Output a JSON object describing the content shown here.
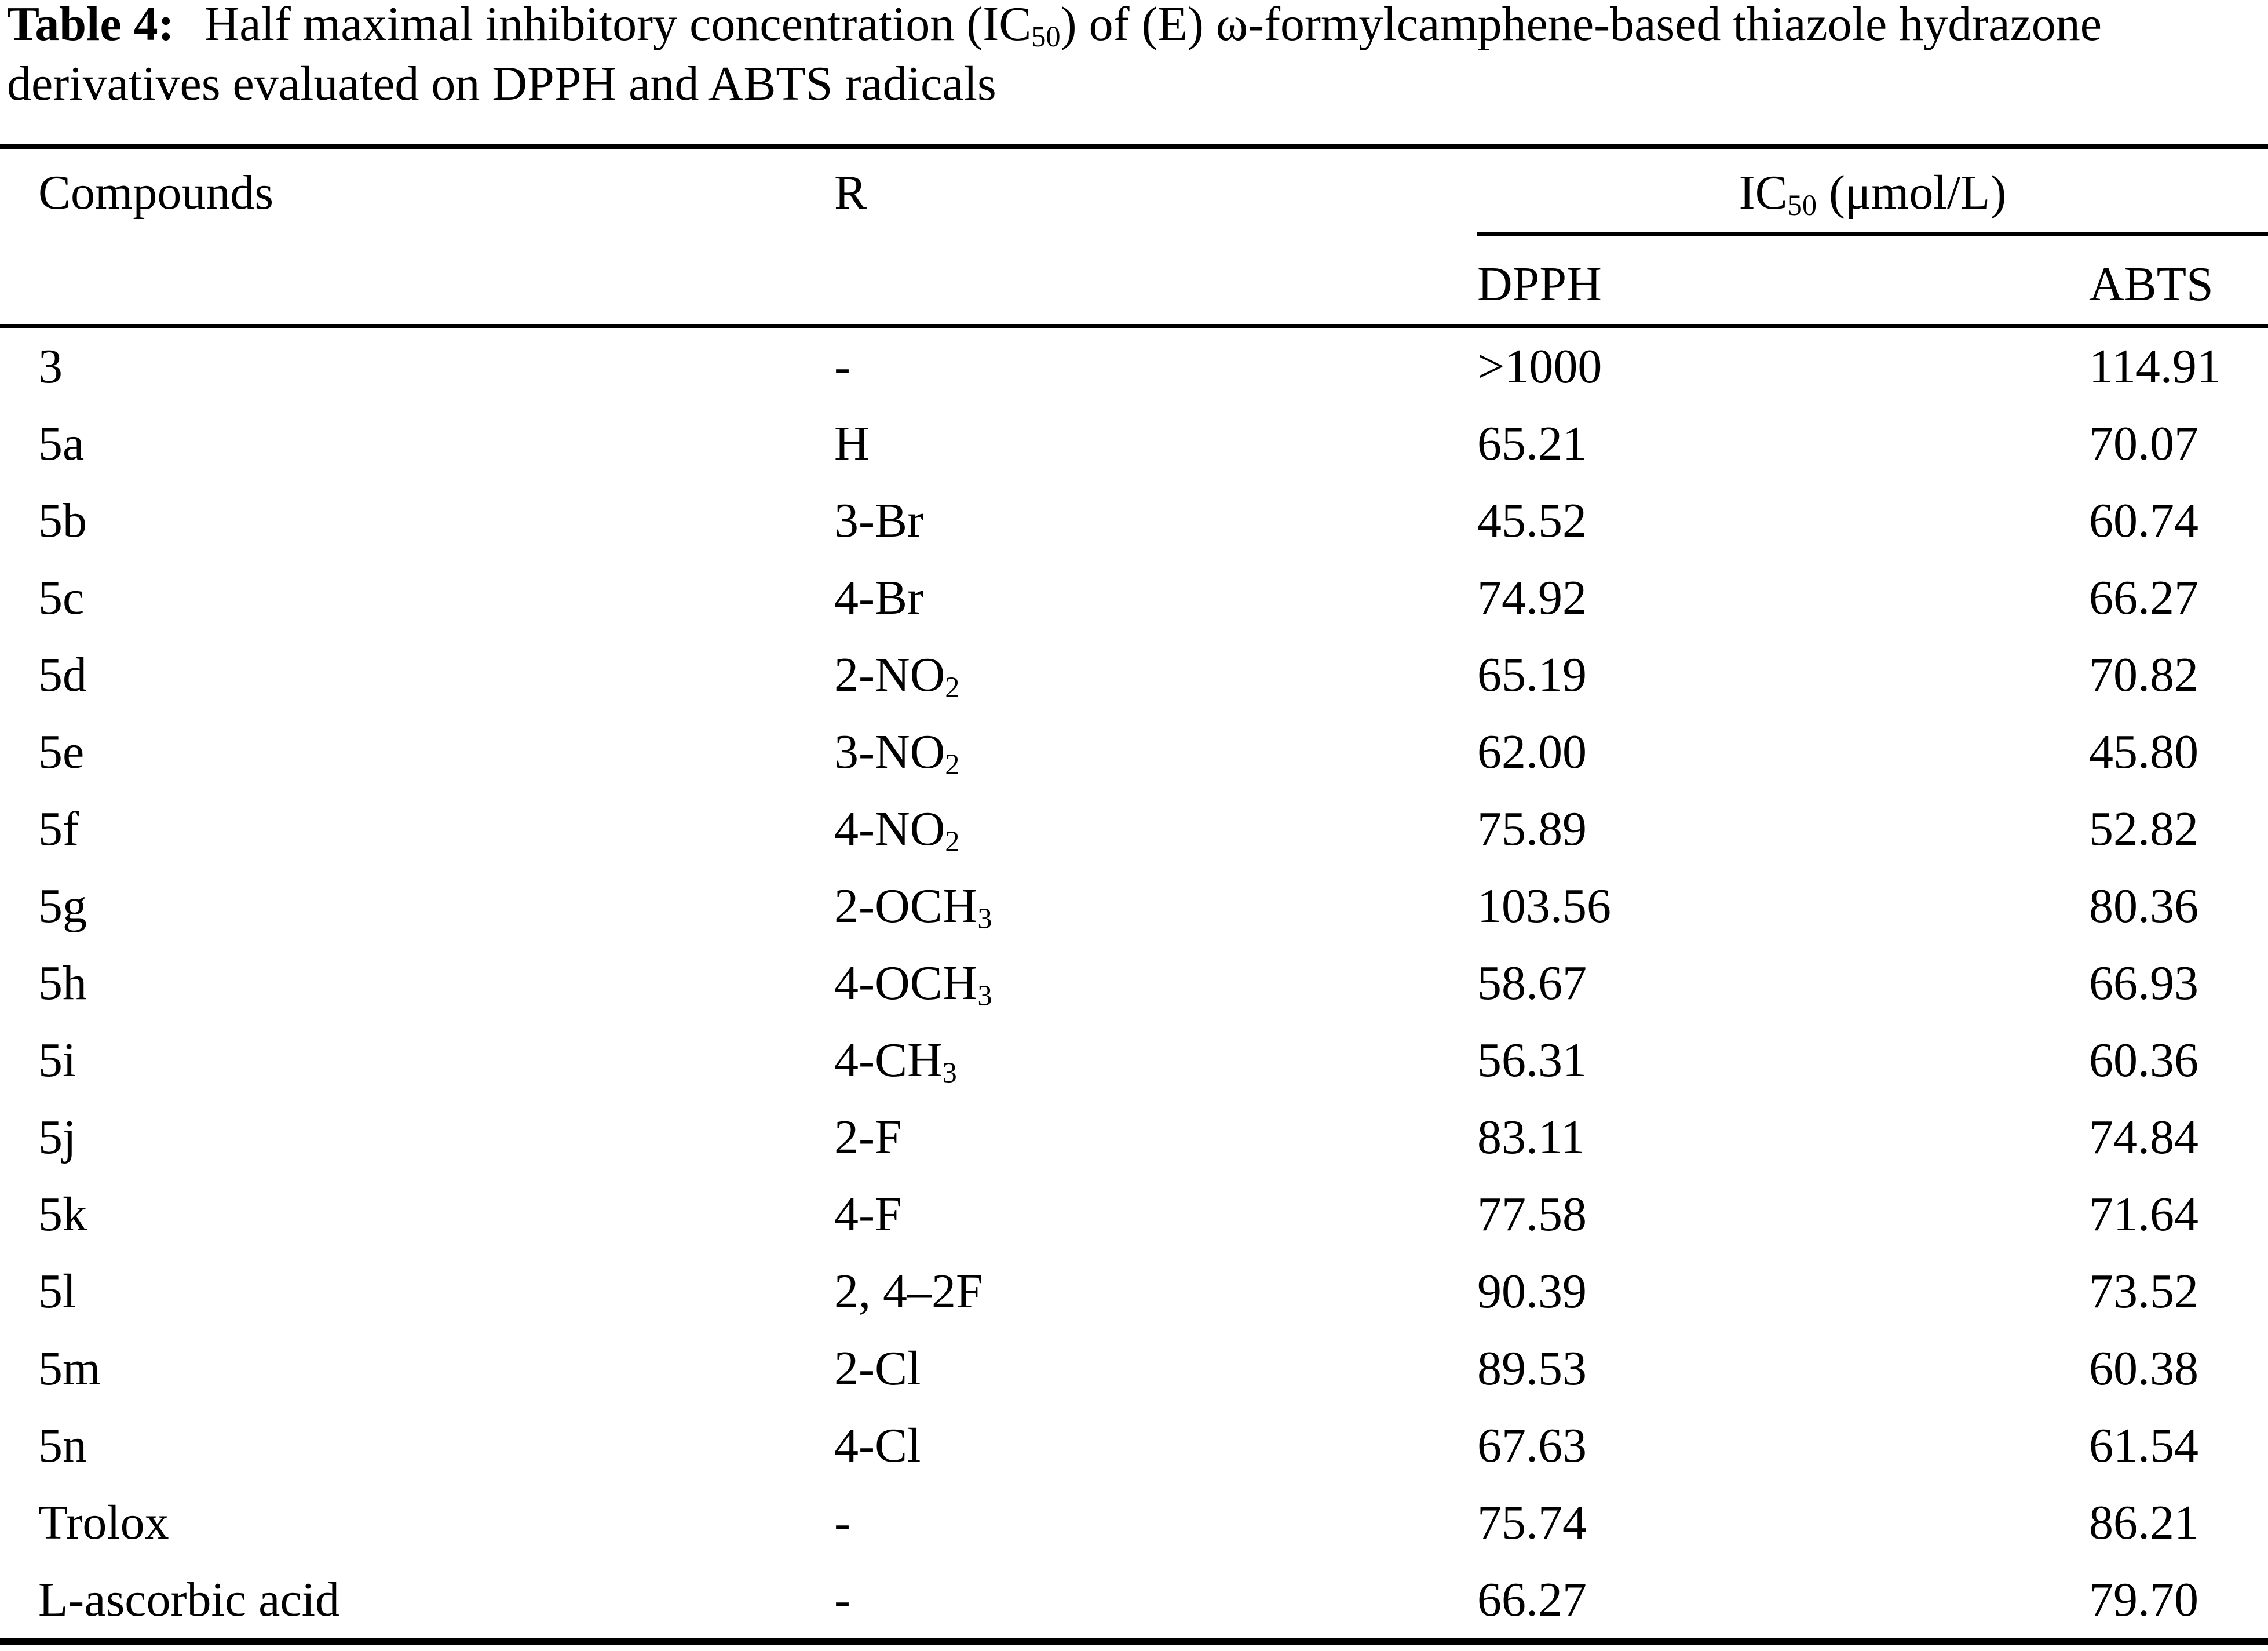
{
  "page": {
    "background_color": "#ffffff",
    "text_color": "#000000"
  },
  "title": {
    "bold_label": "Table 4:",
    "line1_pre": "Half maximal inhibitory concentration (IC",
    "line1_sub": "50",
    "line1_post": ") of (E) ω-formylcamphene-based thiazole hydrazone",
    "line2": "derivatives evaluated on DPPH and ABTS radicals"
  },
  "table": {
    "columns": {
      "compounds_header": "Compounds",
      "r_header": "R",
      "ic50_header_pre": "IC",
      "ic50_header_sub": "50",
      "ic50_header_post": " (μmol/L)",
      "dpph_header": "DPPH",
      "abts_header": "ABTS"
    },
    "rows": [
      {
        "compound": "3",
        "r": [
          [
            "-",
            0
          ]
        ],
        "dpph": ">1000",
        "abts": "114.91"
      },
      {
        "compound": "5a",
        "r": [
          [
            "H",
            0
          ]
        ],
        "dpph": "65.21",
        "abts": "70.07"
      },
      {
        "compound": "5b",
        "r": [
          [
            "3-Br",
            0
          ]
        ],
        "dpph": "45.52",
        "abts": "60.74"
      },
      {
        "compound": "5c",
        "r": [
          [
            "4-Br",
            0
          ]
        ],
        "dpph": "74.92",
        "abts": "66.27"
      },
      {
        "compound": "5d",
        "r": [
          [
            "2-NO",
            0
          ],
          [
            "2",
            1
          ]
        ],
        "dpph": "65.19",
        "abts": "70.82"
      },
      {
        "compound": "5e",
        "r": [
          [
            "3-NO",
            0
          ],
          [
            "2",
            1
          ]
        ],
        "dpph": "62.00",
        "abts": "45.80"
      },
      {
        "compound": "5f",
        "r": [
          [
            "4-NO",
            0
          ],
          [
            "2",
            1
          ]
        ],
        "dpph": "75.89",
        "abts": "52.82"
      },
      {
        "compound": "5g",
        "r": [
          [
            "2-OCH",
            0
          ],
          [
            "3",
            1
          ]
        ],
        "dpph": "103.56",
        "abts": "80.36"
      },
      {
        "compound": "5h",
        "r": [
          [
            "4-OCH",
            0
          ],
          [
            "3",
            1
          ]
        ],
        "dpph": "58.67",
        "abts": "66.93"
      },
      {
        "compound": "5i",
        "r": [
          [
            "4-CH",
            0
          ],
          [
            "3",
            1
          ]
        ],
        "dpph": "56.31",
        "abts": "60.36"
      },
      {
        "compound": "5j",
        "r": [
          [
            "2-F",
            0
          ]
        ],
        "dpph": "83.11",
        "abts": "74.84"
      },
      {
        "compound": "5k",
        "r": [
          [
            "4-F",
            0
          ]
        ],
        "dpph": "77.58",
        "abts": "71.64"
      },
      {
        "compound": "5l",
        "r": [
          [
            "2, 4–2F",
            0
          ]
        ],
        "dpph": "90.39",
        "abts": "73.52"
      },
      {
        "compound": "5m",
        "r": [
          [
            "2-Cl",
            0
          ]
        ],
        "dpph": "89.53",
        "abts": "60.38"
      },
      {
        "compound": "5n",
        "r": [
          [
            "4-Cl",
            0
          ]
        ],
        "dpph": "67.63",
        "abts": "61.54"
      },
      {
        "compound": "Trolox",
        "r": [
          [
            "-",
            0
          ]
        ],
        "dpph": "75.74",
        "abts": "86.21"
      },
      {
        "compound": "L-ascorbic acid",
        "r": [
          [
            "-",
            0
          ]
        ],
        "dpph": "66.27",
        "abts": "79.70"
      }
    ]
  }
}
